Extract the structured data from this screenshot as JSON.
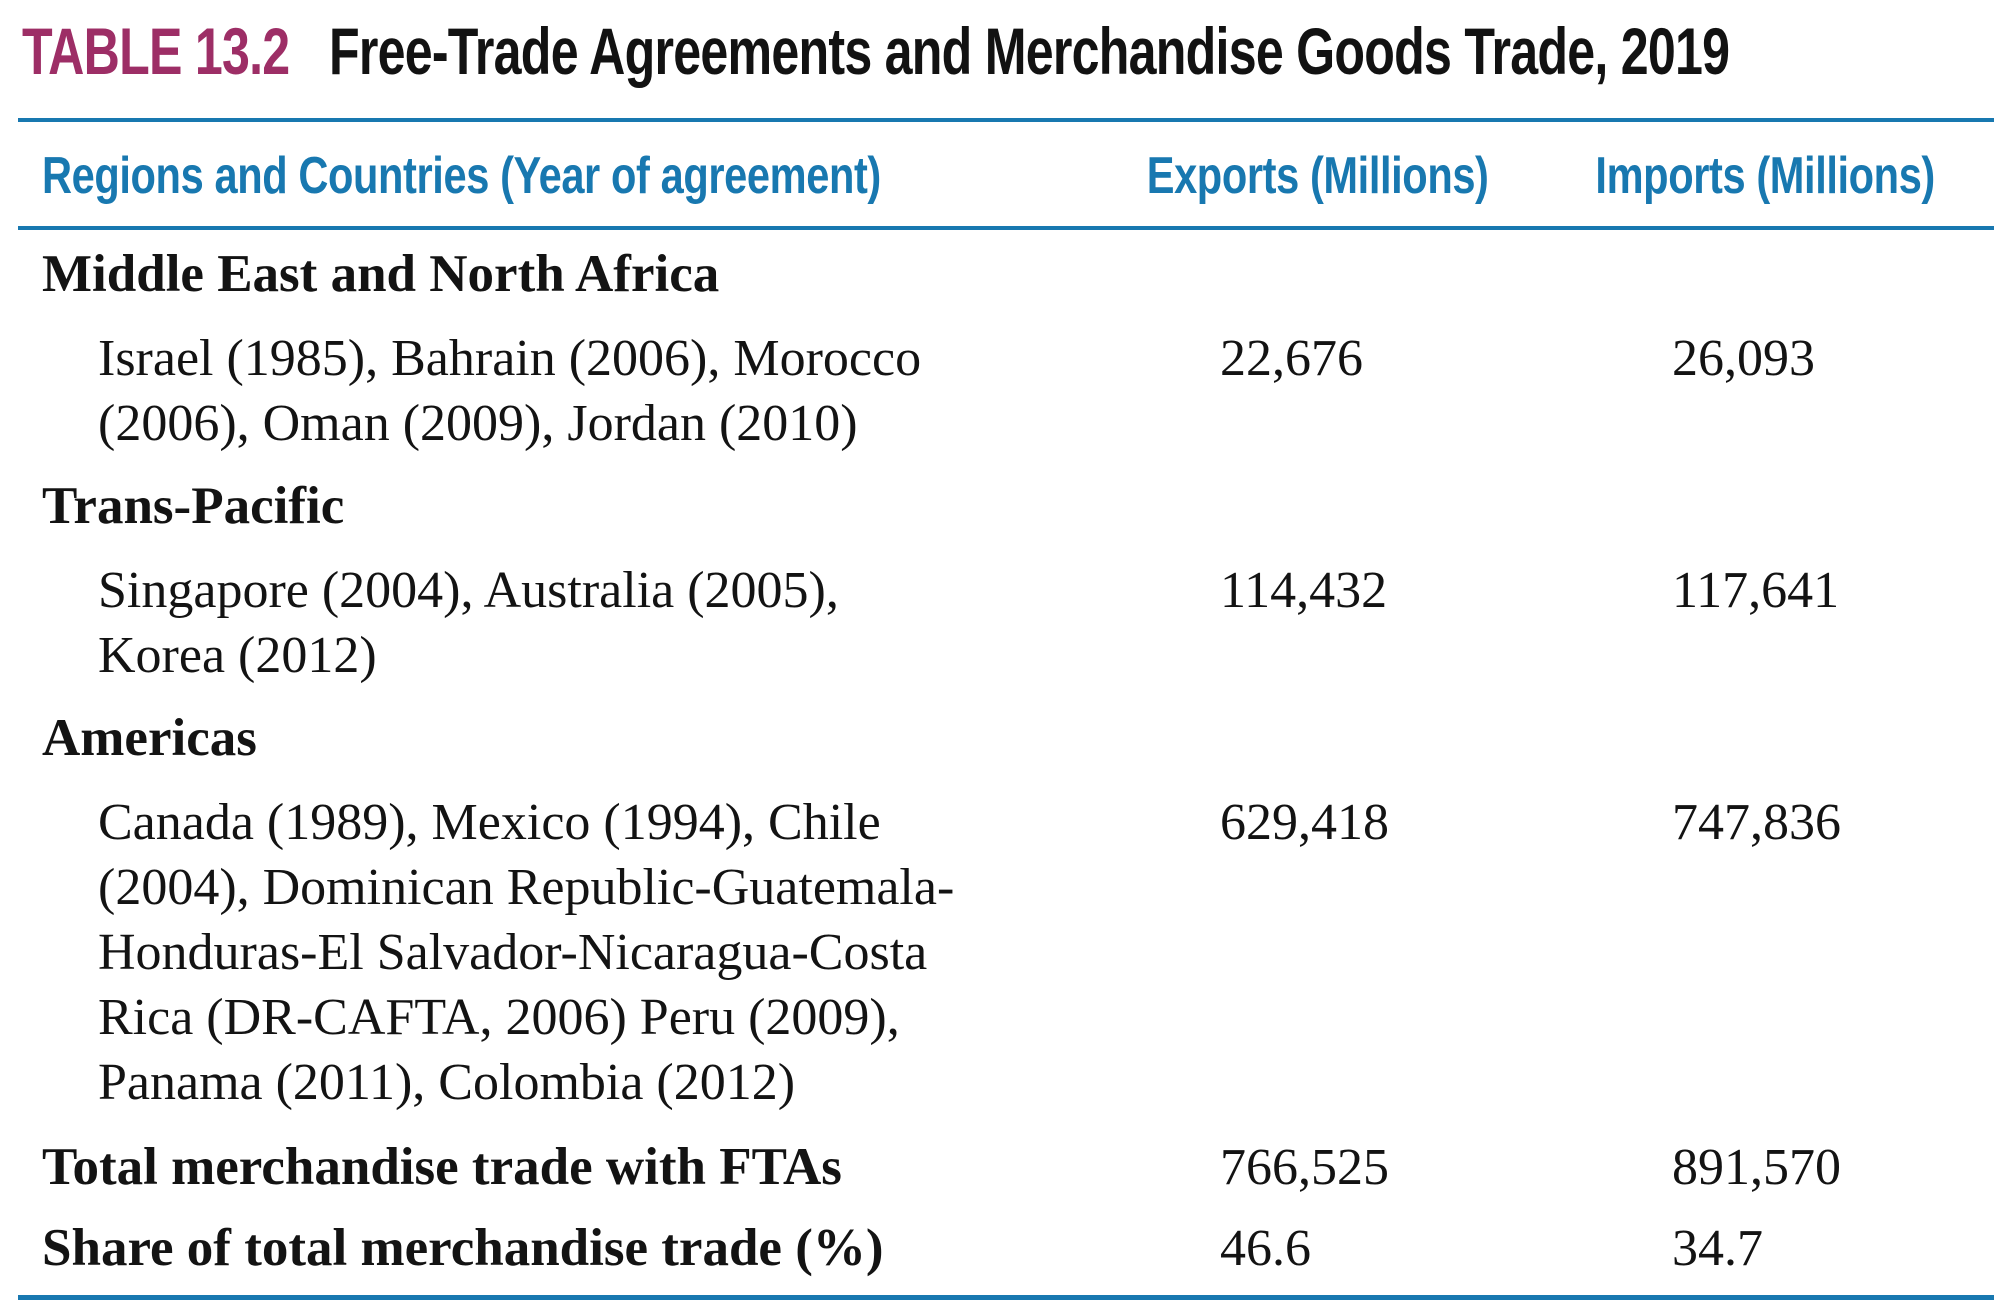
{
  "title": {
    "label": "TABLE 13.2",
    "text": "Free-Trade Agreements and Merchandise Goods Trade, 2019"
  },
  "colors": {
    "accent_blue": "#1878b0",
    "label_magenta": "#9d2e66",
    "body_ink": "#131313"
  },
  "table": {
    "headers": [
      "Regions and Countries (Year of agreement)",
      "Exports (Millions)",
      "Imports (Millions)"
    ],
    "sections": [
      {
        "region": "Middle East and North Africa",
        "countries": "Israel (1985), Bahrain (2006), Morocco (2006), Oman (2009), Jordan (2010)",
        "exports": "22,676",
        "imports": "26,093"
      },
      {
        "region": "Trans-Pacific",
        "countries": "Singapore (2004), Australia (2005), Korea (2012)",
        "exports": "114,432",
        "imports": "117,641"
      },
      {
        "region": "Americas",
        "countries": "Canada (1989), Mexico (1994), Chile (2004), Dominican Republic-Guatemala-Honduras-El Salvador-Nicaragua-Costa Rica (DR-CAFTA, 2006) Peru (2009), Panama (2011), Colombia (2012)",
        "exports": "629,418",
        "imports": "747,836"
      }
    ],
    "summary": [
      {
        "label": "Total merchandise trade with FTAs",
        "exports": "766,525",
        "imports": "891,570"
      },
      {
        "label": "Share of total merchandise trade (%)",
        "exports": "46.6",
        "imports": "34.7"
      }
    ]
  }
}
